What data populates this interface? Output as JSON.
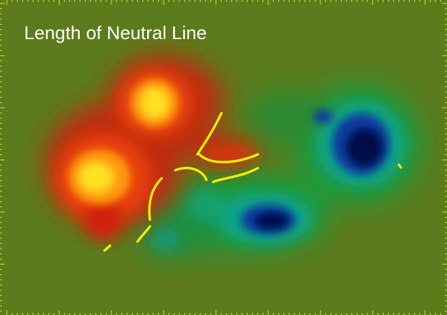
{
  "title": "Length of Neutral Line"
}
